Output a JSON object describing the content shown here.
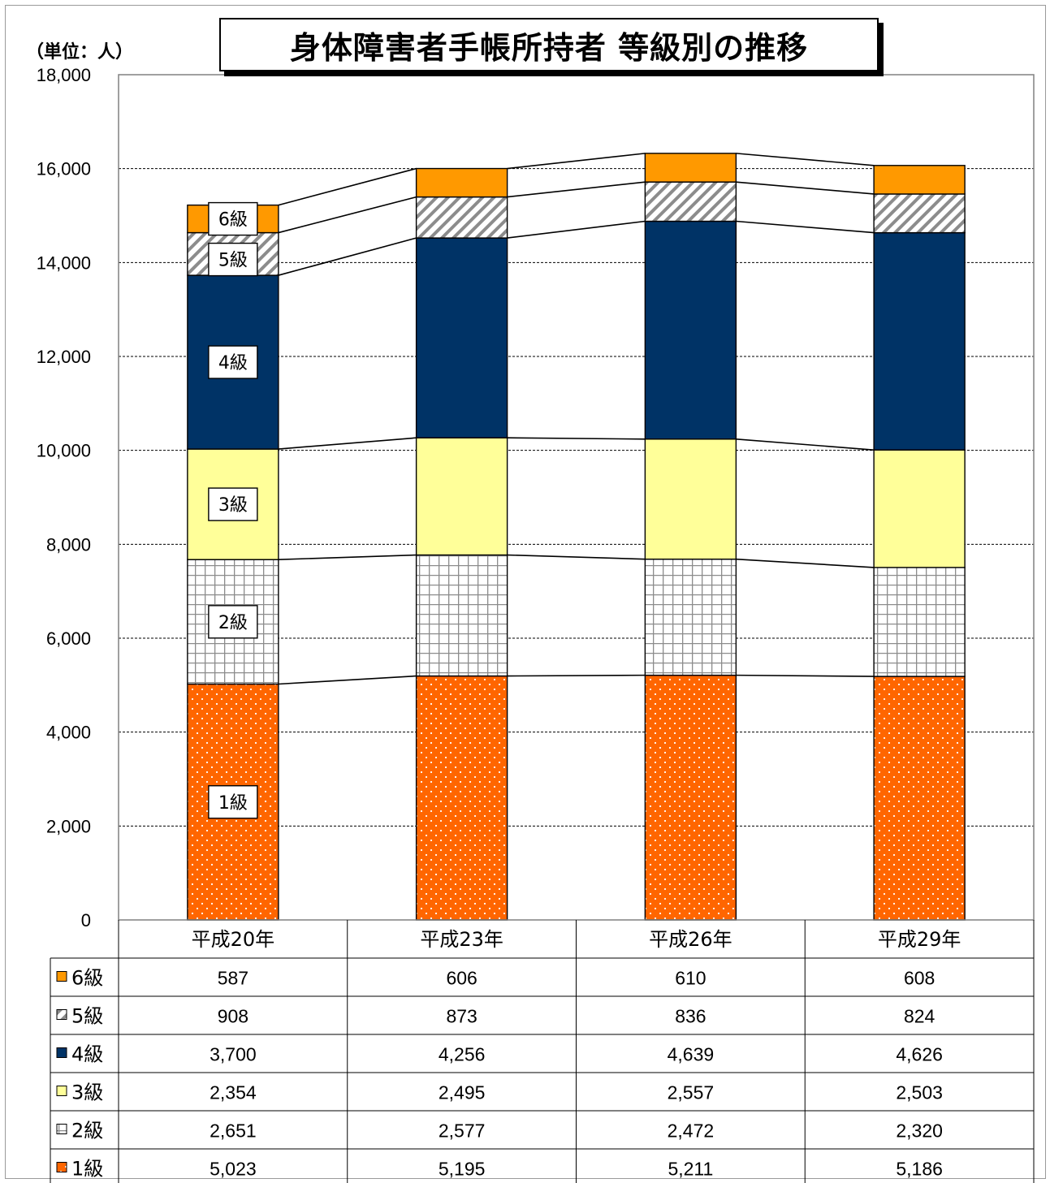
{
  "title": "身体障害者手帳所持者 等級別の推移",
  "unit_label": "（単位：人）",
  "chart_data": {
    "type": "bar",
    "stacked": true,
    "title": "身体障害者手帳所持者 等級別の推移",
    "xlabel": "",
    "ylabel": "（単位：人）",
    "ylim": [
      0,
      18000
    ],
    "y_ticks": [
      "0",
      "2,000",
      "4,000",
      "6,000",
      "8,000",
      "10,000",
      "12,000",
      "14,000",
      "16,000",
      "18,000"
    ],
    "grid": true,
    "series_lines": true,
    "categories": [
      "平成20年",
      "平成23年",
      "平成26年",
      "平成29年"
    ],
    "series": [
      {
        "name": "1級",
        "values": [
          5023,
          5195,
          5211,
          5186
        ],
        "display": [
          "5,023",
          "5,195",
          "5,211",
          "5,186"
        ],
        "color": "#ff6600",
        "pattern": "dots"
      },
      {
        "name": "2級",
        "values": [
          2651,
          2577,
          2472,
          2320
        ],
        "display": [
          "2,651",
          "2,577",
          "2,472",
          "2,320"
        ],
        "color": "#ffffff",
        "pattern": "grid"
      },
      {
        "name": "3級",
        "values": [
          2354,
          2495,
          2557,
          2503
        ],
        "display": [
          "2,354",
          "2,495",
          "2,557",
          "2,503"
        ],
        "color": "#ffff99",
        "pattern": "solid"
      },
      {
        "name": "4級",
        "values": [
          3700,
          4256,
          4639,
          4626
        ],
        "display": [
          "3,700",
          "4,256",
          "4,639",
          "4,626"
        ],
        "color": "#003366",
        "pattern": "solid"
      },
      {
        "name": "5級",
        "values": [
          908,
          873,
          836,
          824
        ],
        "display": [
          "908",
          "873",
          "836",
          "824"
        ],
        "color": "#ffffff",
        "pattern": "diagonal"
      },
      {
        "name": "6級",
        "values": [
          587,
          606,
          610,
          608
        ],
        "display": [
          "587",
          "606",
          "610",
          "608"
        ],
        "color": "#ff9900",
        "pattern": "solid"
      }
    ],
    "segment_labels": [
      "1級",
      "2級",
      "3級",
      "4級",
      "5級",
      "6級"
    ],
    "data_table_order": [
      "6級",
      "5級",
      "4級",
      "3級",
      "2級",
      "1級"
    ]
  }
}
